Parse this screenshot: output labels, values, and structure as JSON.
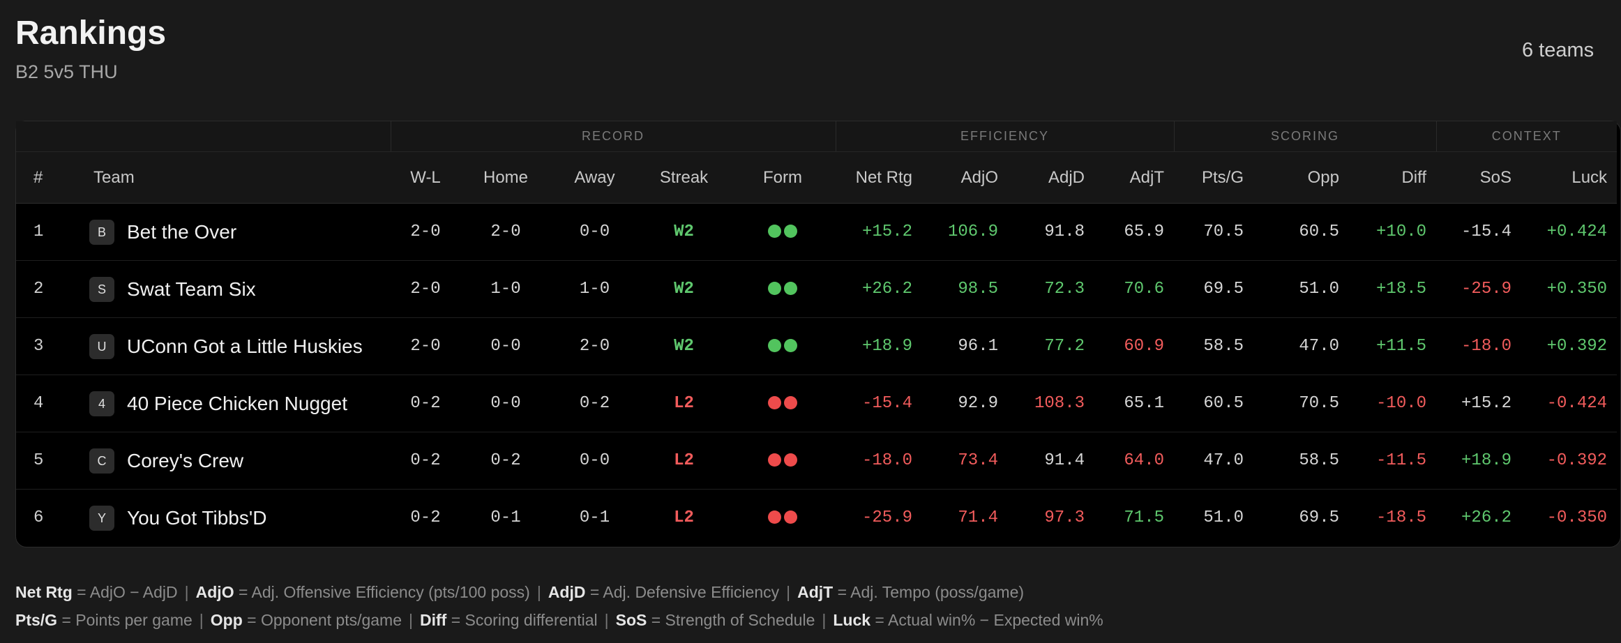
{
  "header": {
    "title": "Rankings",
    "subtitle": "B2 5v5 THU",
    "team_count": "6 teams"
  },
  "groups": {
    "record": "RECORD",
    "efficiency": "EFFICIENCY",
    "scoring": "SCORING",
    "context": "CONTEXT"
  },
  "columns": {
    "rank": "#",
    "team": "Team",
    "wl": "W-L",
    "home": "Home",
    "away": "Away",
    "streak": "Streak",
    "form": "Form",
    "netrtg": "Net Rtg",
    "adjo": "AdjO",
    "adjd": "AdjD",
    "adjt": "AdjT",
    "ptsg": "Pts/G",
    "opp": "Opp",
    "diff": "Diff",
    "sos": "SoS",
    "luck": "Luck"
  },
  "colors": {
    "positive": "#5fc86e",
    "negative": "#f25c5c",
    "neutral": "#d6d6d6"
  },
  "rows": [
    {
      "rank": "1",
      "initial": "B",
      "team": "Bet the Over",
      "wl": "2-0",
      "home": "2-0",
      "away": "0-0",
      "streak": "W2",
      "form": [
        "win",
        "win"
      ],
      "netrtg": "+15.2",
      "adjo": "106.9",
      "adjd": "91.8",
      "adjt": "65.9",
      "ptsg": "70.5",
      "opp": "60.5",
      "diff": "+10.0",
      "sos": "-15.4",
      "luck": "+0.424"
    },
    {
      "rank": "2",
      "initial": "S",
      "team": "Swat Team Six",
      "wl": "2-0",
      "home": "1-0",
      "away": "1-0",
      "streak": "W2",
      "form": [
        "win",
        "win"
      ],
      "netrtg": "+26.2",
      "adjo": "98.5",
      "adjd": "72.3",
      "adjt": "70.6",
      "ptsg": "69.5",
      "opp": "51.0",
      "diff": "+18.5",
      "sos": "-25.9",
      "luck": "+0.350"
    },
    {
      "rank": "3",
      "initial": "U",
      "team": "UConn Got a Little Huskies",
      "wl": "2-0",
      "home": "0-0",
      "away": "2-0",
      "streak": "W2",
      "form": [
        "win",
        "win"
      ],
      "netrtg": "+18.9",
      "adjo": "96.1",
      "adjd": "77.2",
      "adjt": "60.9",
      "ptsg": "58.5",
      "opp": "47.0",
      "diff": "+11.5",
      "sos": "-18.0",
      "luck": "+0.392"
    },
    {
      "rank": "4",
      "initial": "4",
      "team": "40 Piece Chicken Nugget",
      "wl": "0-2",
      "home": "0-0",
      "away": "0-2",
      "streak": "L2",
      "form": [
        "loss",
        "loss"
      ],
      "netrtg": "-15.4",
      "adjo": "92.9",
      "adjd": "108.3",
      "adjt": "65.1",
      "ptsg": "60.5",
      "opp": "70.5",
      "diff": "-10.0",
      "sos": "+15.2",
      "luck": "-0.424"
    },
    {
      "rank": "5",
      "initial": "C",
      "team": "Corey's Crew",
      "wl": "0-2",
      "home": "0-2",
      "away": "0-0",
      "streak": "L2",
      "form": [
        "loss",
        "loss"
      ],
      "netrtg": "-18.0",
      "adjo": "73.4",
      "adjd": "91.4",
      "adjt": "64.0",
      "ptsg": "47.0",
      "opp": "58.5",
      "diff": "-11.5",
      "sos": "+18.9",
      "luck": "-0.392"
    },
    {
      "rank": "6",
      "initial": "Y",
      "team": "You Got Tibbs'D",
      "wl": "0-2",
      "home": "0-1",
      "away": "0-1",
      "streak": "L2",
      "form": [
        "loss",
        "loss"
      ],
      "netrtg": "-25.9",
      "adjo": "71.4",
      "adjd": "97.3",
      "adjt": "71.5",
      "ptsg": "51.0",
      "opp": "69.5",
      "diff": "-18.5",
      "sos": "+26.2",
      "luck": "-0.350"
    }
  ],
  "tones": [
    {
      "netrtg": "g",
      "adjo": "g",
      "adjd": "",
      "adjt": "",
      "diff": "g",
      "sos": "",
      "luck": "g"
    },
    {
      "netrtg": "g",
      "adjo": "g",
      "adjd": "g",
      "adjt": "g",
      "diff": "g",
      "sos": "r",
      "luck": "g"
    },
    {
      "netrtg": "g",
      "adjo": "",
      "adjd": "g",
      "adjt": "r",
      "diff": "g",
      "sos": "r",
      "luck": "g"
    },
    {
      "netrtg": "r",
      "adjo": "",
      "adjd": "r",
      "adjt": "",
      "diff": "r",
      "sos": "",
      "luck": "r"
    },
    {
      "netrtg": "r",
      "adjo": "r",
      "adjd": "",
      "adjt": "r",
      "diff": "r",
      "sos": "g",
      "luck": "r"
    },
    {
      "netrtg": "r",
      "adjo": "r",
      "adjd": "r",
      "adjt": "g",
      "diff": "r",
      "sos": "g",
      "luck": "r"
    }
  ],
  "legend": {
    "line1": [
      {
        "term": "Net Rtg",
        "def": " = AdjO − AdjD"
      },
      {
        "term": "AdjO",
        "def": " = Adj. Offensive Efficiency (pts/100 poss)"
      },
      {
        "term": "AdjD",
        "def": " = Adj. Defensive Efficiency"
      },
      {
        "term": "AdjT",
        "def": " = Adj. Tempo (poss/game)"
      }
    ],
    "line2": [
      {
        "term": "Pts/G",
        "def": " = Points per game"
      },
      {
        "term": "Opp",
        "def": " = Opponent pts/game"
      },
      {
        "term": "Diff",
        "def": " = Scoring differential"
      },
      {
        "term": "SoS",
        "def": " = Strength of Schedule"
      },
      {
        "term": "Luck",
        "def": " = Actual win% − Expected win%"
      }
    ]
  }
}
